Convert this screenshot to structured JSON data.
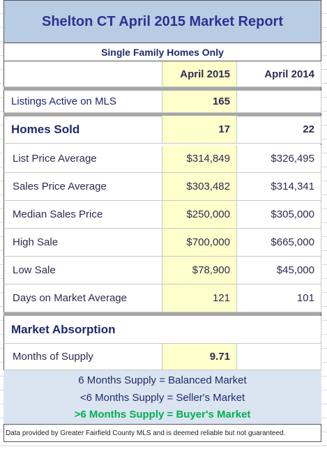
{
  "header": {
    "title": "Shelton CT April 2015 Market Report",
    "subtitle": "Single Family Homes Only"
  },
  "table": {
    "columns": [
      "April 2015",
      "April 2014"
    ],
    "rows": [
      [
        "Listings Active on MLS",
        "165"
      ],
      [
        "Homes Sold",
        "17",
        "22"
      ],
      [
        "List Price Average",
        "$314,849",
        "$326,495"
      ],
      [
        "Sales Price Average",
        "$303,482",
        "$314,341"
      ],
      [
        "Median Sales Price",
        "$250,000",
        "$305,000"
      ],
      [
        "High Sale",
        "$700,000",
        "$665,000"
      ],
      [
        "Low Sale",
        "$78,900",
        "$45,000"
      ],
      [
        "Days on Market Average",
        "121",
        "101"
      ]
    ],
    "section": "Market Absorption",
    "supply_row": [
      "Months of Supply",
      "9.71"
    ]
  },
  "notes": [
    "6 Months Supply = Balanced Market",
    "<6 Months Supply = Seller's Market",
    ">6 Months Supply = Buyer's Market"
  ],
  "footer": "Data provided by Greater Fairfield County MLS and is deemed reliable but not guaranteed."
}
